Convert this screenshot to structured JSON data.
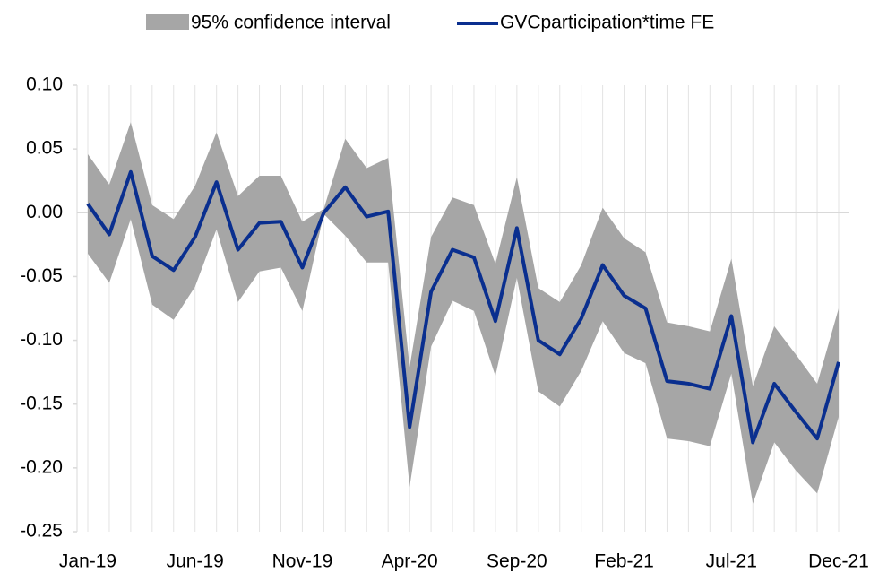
{
  "chart_data": {
    "type": "line",
    "categories": [
      "Jan-19",
      null,
      null,
      null,
      null,
      "Jun-19",
      null,
      null,
      null,
      null,
      "Nov-19",
      null,
      null,
      null,
      null,
      "Apr-20",
      null,
      null,
      null,
      null,
      "Sep-20",
      null,
      null,
      null,
      null,
      "Feb-21",
      null,
      null,
      null,
      null,
      "Jul-21",
      null,
      null,
      null,
      null,
      "Dec-21"
    ],
    "series": [
      {
        "name": "95% confidence interval",
        "color": "#a6a6a6",
        "upper": [
          0.046,
          0.022,
          0.071,
          0.006,
          -0.005,
          0.021,
          0.063,
          0.013,
          0.029,
          0.029,
          -0.007,
          0.003,
          0.058,
          0.035,
          0.043,
          -0.121,
          -0.019,
          0.012,
          0.006,
          -0.04,
          0.028,
          -0.059,
          -0.07,
          -0.041,
          0.004,
          -0.02,
          -0.031,
          -0.086,
          -0.089,
          -0.093,
          -0.036,
          -0.136,
          -0.089,
          -0.111,
          -0.134,
          -0.075
        ],
        "lower": [
          -0.032,
          -0.055,
          -0.005,
          -0.072,
          -0.084,
          -0.058,
          -0.013,
          -0.07,
          -0.046,
          -0.043,
          -0.077,
          -0.001,
          -0.018,
          -0.039,
          -0.039,
          -0.215,
          -0.105,
          -0.069,
          -0.077,
          -0.128,
          -0.051,
          -0.14,
          -0.152,
          -0.124,
          -0.085,
          -0.11,
          -0.118,
          -0.177,
          -0.179,
          -0.183,
          -0.126,
          -0.228,
          -0.18,
          -0.202,
          -0.22,
          -0.16
        ]
      },
      {
        "name": "GVCparticipation*time FE",
        "color": "#0a2f8f",
        "values": [
          0.007,
          -0.017,
          0.032,
          -0.034,
          -0.045,
          -0.019,
          0.024,
          -0.029,
          -0.008,
          -0.007,
          -0.043,
          0.0,
          0.02,
          -0.003,
          0.001,
          -0.168,
          -0.062,
          -0.029,
          -0.035,
          -0.085,
          -0.012,
          -0.1,
          -0.111,
          -0.083,
          -0.041,
          -0.065,
          -0.075,
          -0.132,
          -0.134,
          -0.138,
          -0.081,
          -0.18,
          -0.134,
          -0.156,
          -0.177,
          -0.117
        ]
      }
    ],
    "ylim": [
      -0.25,
      0.1
    ],
    "yticks": [
      {
        "value": 0.1,
        "label": "0.10"
      },
      0.05,
      {
        "value": 0,
        "label": "0.00"
      },
      -0.05,
      {
        "value": -0.1,
        "label": "-0.10"
      },
      -0.15,
      {
        "value": -0.2,
        "label": "-0.20"
      },
      -0.25
    ],
    "grid": true,
    "legend": "top"
  }
}
